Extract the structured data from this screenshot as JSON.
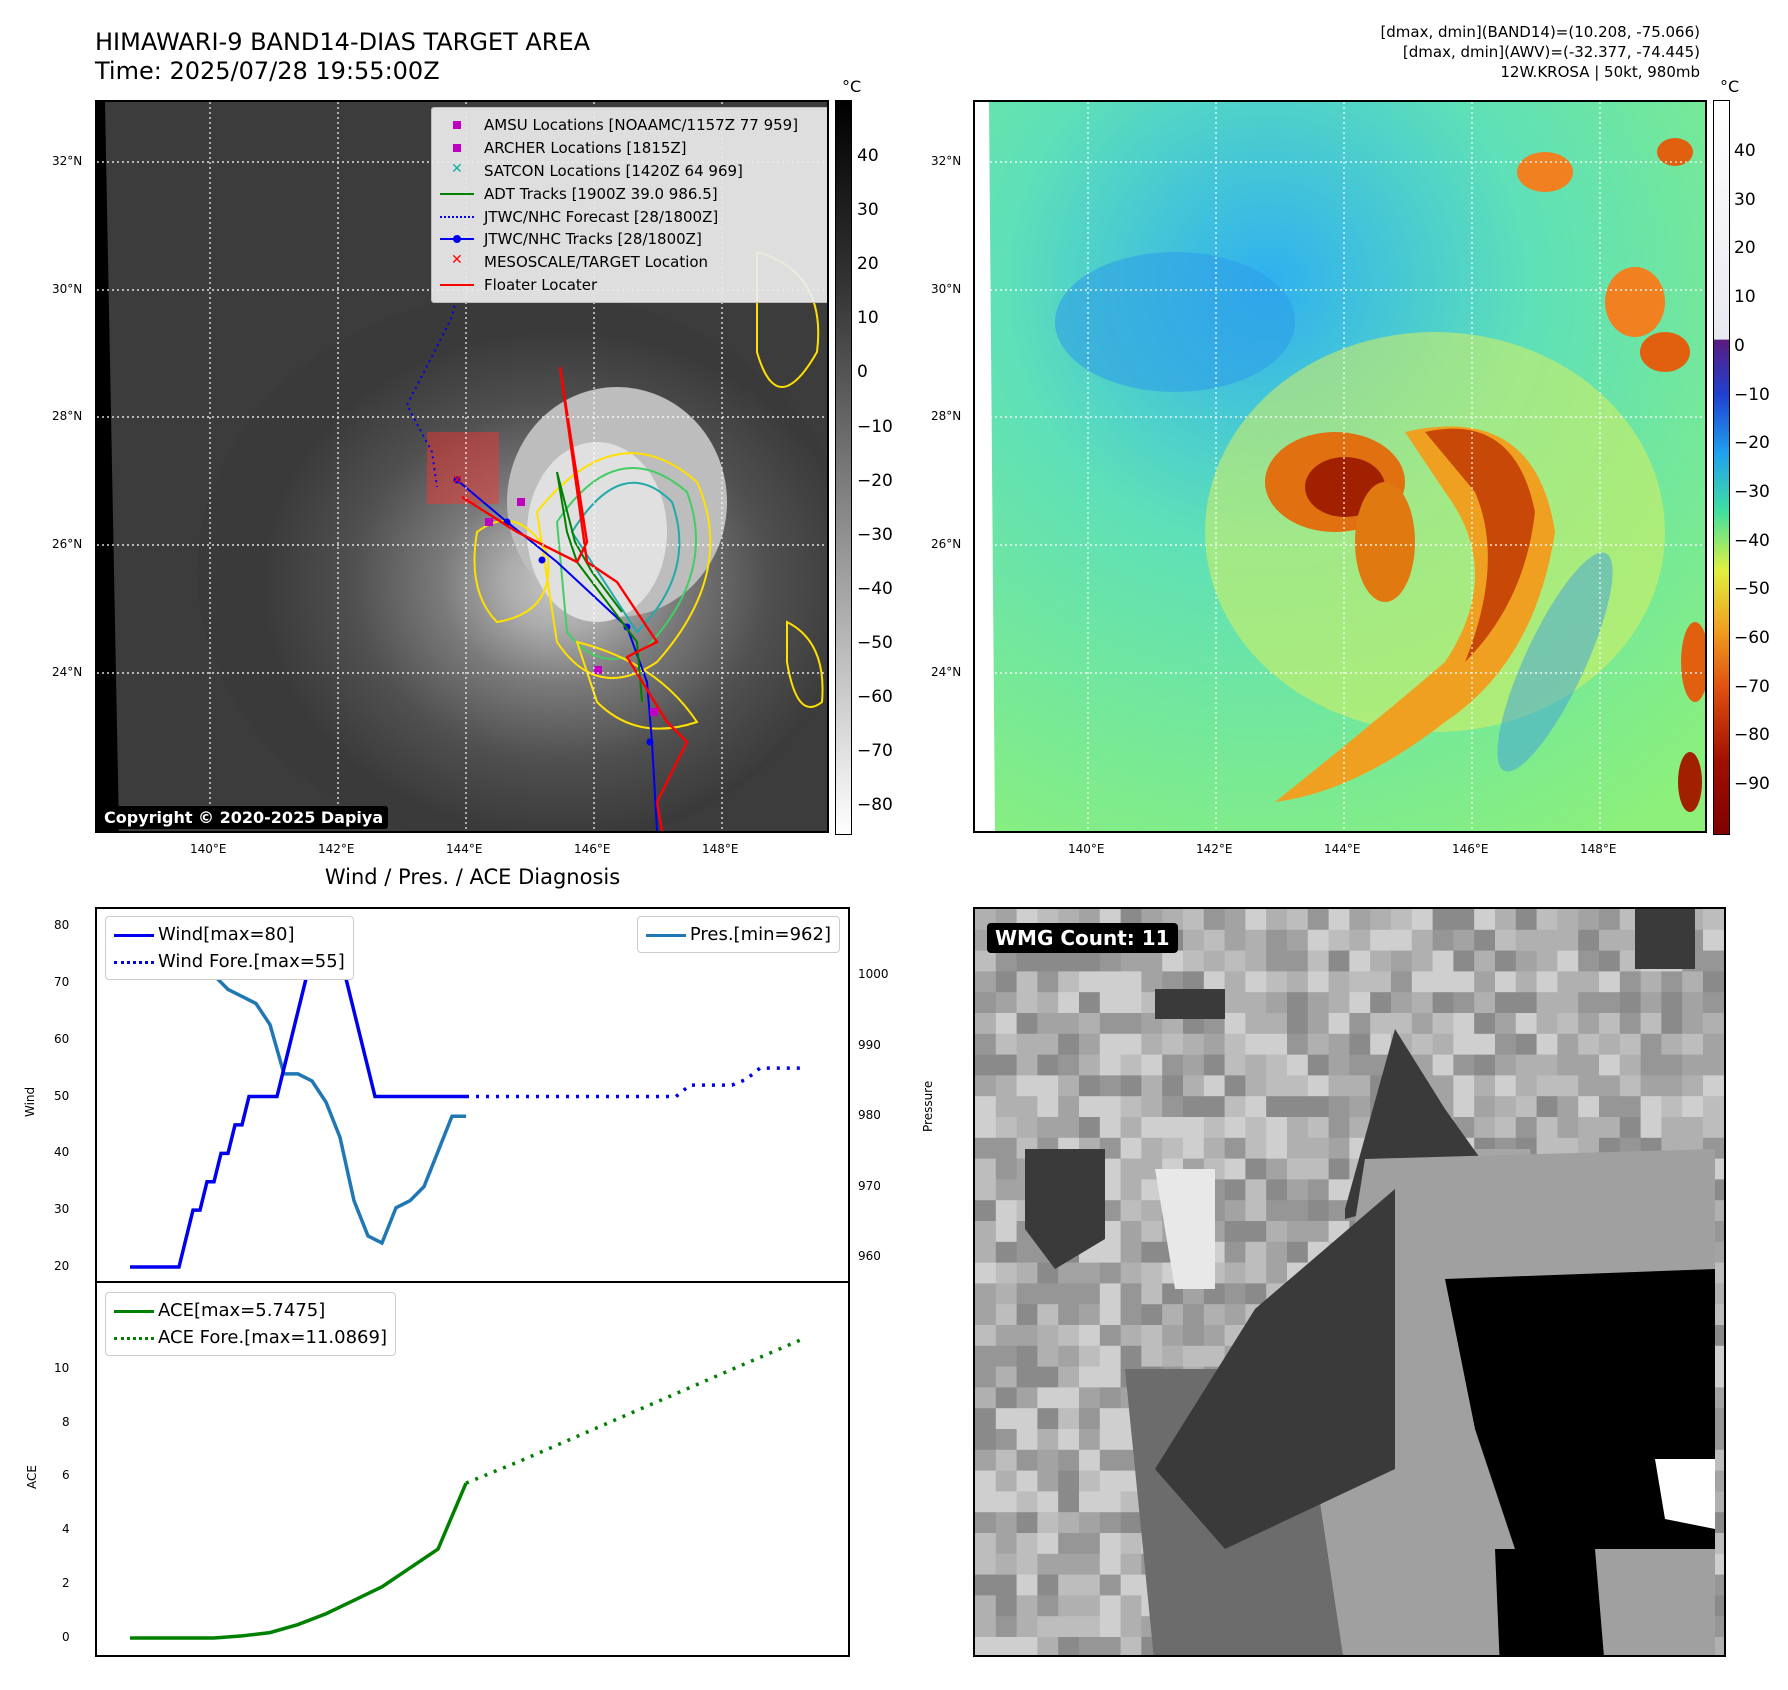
{
  "header": {
    "title_line1": "HIMAWARI-9 BAND14-DIAS TARGET AREA",
    "title_line2": "Time: 2025/07/28 19:55:00Z",
    "meta_line1": "[dmax, dmin](BAND14)=(10.208, -75.066)",
    "meta_line2": "[dmax, dmin](AWV)=(-32.377, -74.445)",
    "meta_line3": "12W.KROSA | 50kt, 980mb"
  },
  "map": {
    "lat_ticks": [
      "32°N",
      "30°N",
      "28°N",
      "26°N",
      "24°N"
    ],
    "lon_ticks": [
      "140°E",
      "142°E",
      "144°E",
      "146°E",
      "148°E"
    ],
    "colorbar_unit": "°C",
    "ir_colorbar_ticks": [
      "40",
      "30",
      "20",
      "10",
      "0",
      "−10",
      "−20",
      "−30",
      "−40",
      "−50",
      "−60",
      "−70",
      "−80"
    ],
    "wv_colorbar_ticks": [
      "40",
      "30",
      "20",
      "10",
      "0",
      "−10",
      "−20",
      "−30",
      "−40",
      "−50",
      "−60",
      "−70",
      "−80",
      "−90"
    ],
    "copyright": "Copyright © 2020-2025 Dapiya",
    "legend": [
      {
        "label": "AMSU Locations [NOAAMC/1157Z 77 959]",
        "symbol": "square",
        "color": "#c000c0"
      },
      {
        "label": "ARCHER Locations [1815Z]",
        "symbol": "square",
        "color": "#c000c0"
      },
      {
        "label": "SATCON Locations [1420Z 64 969]",
        "symbol": "x",
        "color": "#10b0a0"
      },
      {
        "label": "ADT Tracks [1900Z 39.0 986.5]",
        "symbol": "line",
        "color": "#008000"
      },
      {
        "label": "JTWC/NHC Forecast [28/1800Z]",
        "symbol": "dotted",
        "color": "#0000ee"
      },
      {
        "label": "JTWC/NHC Tracks [28/1800Z]",
        "symbol": "line-dot",
        "color": "#0000ee"
      },
      {
        "label": "MESOSCALE/TARGET Location",
        "symbol": "x",
        "color": "#ff0000"
      },
      {
        "label": "Floater Locater",
        "symbol": "line",
        "color": "#ff0000"
      }
    ]
  },
  "diagnosis": {
    "title": "Wind / Pres. / ACE Diagnosis",
    "wind_ylabel": "Wind",
    "pres_ylabel": "Pressure",
    "ace_ylabel": "ACE",
    "wind_ticks": [
      "80",
      "70",
      "60",
      "50",
      "40",
      "30",
      "20"
    ],
    "pres_ticks": [
      "1000",
      "990",
      "980",
      "970",
      "960"
    ],
    "ace_ticks": [
      "10",
      "8",
      "6",
      "4",
      "2",
      "0"
    ],
    "legend_wind": "Wind[max=80]",
    "legend_wind_fore": "Wind Fore.[max=55]",
    "legend_pres": "Pres.[min=962]",
    "legend_ace": "ACE[max=5.7475]",
    "legend_ace_fore": "ACE Fore.[max=11.0869]"
  },
  "wmg": {
    "label": "WMG Count: 11"
  },
  "colors": {
    "wind": "#0000ee",
    "pressure": "#1f77b4",
    "ace": "#008000",
    "track_red": "#ff0000",
    "adt_green": "#008000"
  },
  "chart_data": [
    {
      "type": "line",
      "title": "Wind / Pres. / ACE Diagnosis",
      "ylabel": "Wind",
      "ylim": [
        18,
        82
      ],
      "series": [
        {
          "name": "Wind[max=80]",
          "x": [
            0,
            1,
            2,
            3,
            4,
            5,
            6,
            7,
            8,
            9,
            10,
            11,
            12,
            13,
            14,
            15,
            16,
            17,
            18,
            19,
            20,
            21,
            22,
            23,
            24,
            25,
            26,
            27,
            28,
            29,
            30,
            31,
            32,
            33,
            34,
            35,
            36,
            37,
            38,
            39,
            40,
            41,
            42,
            43,
            44,
            45,
            46,
            47,
            48
          ],
          "values": [
            20,
            20,
            20,
            20,
            20,
            20,
            20,
            20,
            25,
            30,
            30,
            35,
            35,
            40,
            40,
            45,
            45,
            50,
            50,
            50,
            50,
            50,
            55,
            60,
            65,
            70,
            75,
            80,
            80,
            80,
            75,
            70,
            65,
            60,
            55,
            50,
            50,
            50,
            50,
            50,
            50,
            50,
            50,
            50,
            50,
            50,
            50,
            50,
            50
          ]
        },
        {
          "name": "Wind Fore.[max=55]",
          "x": [
            48,
            50,
            52,
            54,
            56,
            58,
            60,
            62,
            64,
            66,
            68,
            70,
            72,
            74,
            76,
            78,
            80,
            82,
            84,
            86,
            88,
            90,
            92,
            94,
            96
          ],
          "values": [
            50,
            50,
            50,
            50,
            50,
            50,
            50,
            50,
            50,
            50,
            50,
            50,
            50,
            50,
            50,
            50,
            52,
            52,
            52,
            52,
            53,
            55,
            55,
            55,
            55
          ]
        }
      ]
    },
    {
      "type": "line",
      "ylabel": "Pressure",
      "ylim": [
        960,
        1008
      ],
      "series": [
        {
          "name": "Pres.[min=962]",
          "x": [
            0,
            2,
            4,
            6,
            8,
            10,
            12,
            14,
            16,
            18,
            20,
            22,
            24,
            26,
            28,
            30,
            32,
            34,
            36,
            38,
            40,
            42,
            44,
            46,
            48
          ],
          "values": [
            1007,
            1007,
            1007,
            1006,
            1004,
            1002,
            1000,
            998,
            997,
            996,
            993,
            986,
            986,
            985,
            982,
            977,
            968,
            963,
            962,
            967,
            968,
            970,
            975,
            980,
            980
          ]
        }
      ]
    },
    {
      "type": "line",
      "ylabel": "ACE",
      "ylim": [
        -0.5,
        11.7
      ],
      "series": [
        {
          "name": "ACE[max=5.7475]",
          "x": [
            0,
            4,
            8,
            12,
            16,
            20,
            24,
            28,
            32,
            36,
            40,
            44,
            48
          ],
          "values": [
            0,
            0,
            0,
            0,
            0.08,
            0.2,
            0.5,
            0.9,
            1.4,
            1.9,
            2.6,
            3.3,
            5.75
          ]
        },
        {
          "name": "ACE Fore.[max=11.0869]",
          "x": [
            48,
            56,
            64,
            72,
            80,
            88,
            96
          ],
          "values": [
            5.75,
            6.6,
            7.5,
            8.4,
            9.3,
            10.2,
            11.09
          ]
        }
      ]
    }
  ]
}
